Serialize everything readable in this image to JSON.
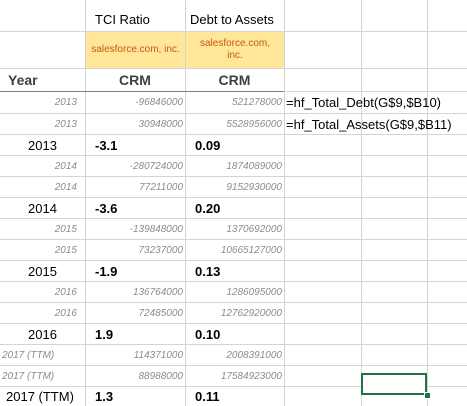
{
  "sheet": {
    "headers": {
      "metric_1": "TCI Ratio",
      "metric_2": "Debt to Assets",
      "company_1": "salesforce.com, inc.",
      "company_2_line1": "salesforce.com,",
      "company_2_line2": "inc.",
      "year": "Year",
      "ticker_1": "CRM",
      "ticker_2": "CRM"
    },
    "rows": [
      {
        "year": "2013",
        "tci": "-96846000",
        "dta": "521278000",
        "formula": "=hf_Total_Debt(G$9,$B10)"
      },
      {
        "year": "2013",
        "tci": "30948000",
        "dta": "5528956000",
        "formula": "=hf_Total_Assets(G$9,$B11)"
      },
      {
        "year": "2013",
        "tci": "-3.1",
        "dta": "0.09"
      },
      {
        "year": "2014",
        "tci": "-280724000",
        "dta": "1874089000"
      },
      {
        "year": "2014",
        "tci": "77211000",
        "dta": "9152930000"
      },
      {
        "year": "2014",
        "tci": "-3.6",
        "dta": "0.20"
      },
      {
        "year": "2015",
        "tci": "-139848000",
        "dta": "1370692000"
      },
      {
        "year": "2015",
        "tci": "73237000",
        "dta": "10665127000"
      },
      {
        "year": "2015",
        "tci": "-1.9",
        "dta": "0.13"
      },
      {
        "year": "2016",
        "tci": "136764000",
        "dta": "1286095000"
      },
      {
        "year": "2016",
        "tci": "72485000",
        "dta": "12762920000"
      },
      {
        "year": "2016",
        "tci": "1.9",
        "dta": "0.10"
      },
      {
        "year": "2017 (TTM)",
        "tci": "114371000",
        "dta": "2008391000"
      },
      {
        "year": "2017 (TTM)",
        "tci": "88988000",
        "dta": "17584923000"
      },
      {
        "year": "2017  (TTM)",
        "tci": "1.3",
        "dta": "0.11"
      }
    ]
  }
}
